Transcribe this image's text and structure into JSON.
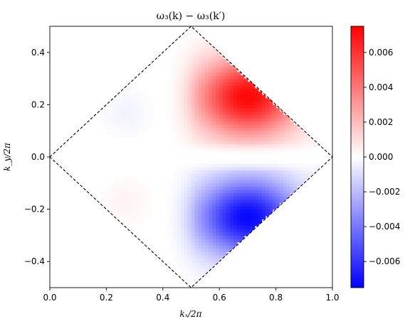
{
  "chart_data": {
    "type": "heatmap",
    "title": "ω₃(k) − ω₃(k′)",
    "xlabel": "kₓ/2π",
    "ylabel": "k_y/2π",
    "xlim": [
      0.0,
      1.0
    ],
    "ylim": [
      -0.5,
      0.5
    ],
    "x_ticks": [
      {
        "value": 0.0,
        "label": "0.0"
      },
      {
        "value": 0.2,
        "label": "0.2"
      },
      {
        "value": 0.4,
        "label": "0.4"
      },
      {
        "value": 0.6,
        "label": "0.6"
      },
      {
        "value": 0.8,
        "label": "0.8"
      },
      {
        "value": 1.0,
        "label": "1.0"
      }
    ],
    "y_ticks": [
      {
        "value": -0.4,
        "label": "−0.4"
      },
      {
        "value": -0.2,
        "label": "−0.2"
      },
      {
        "value": 0.0,
        "label": "0.0"
      },
      {
        "value": 0.2,
        "label": "0.2"
      },
      {
        "value": 0.4,
        "label": "0.4"
      }
    ],
    "colorbar": {
      "colormap": "bwr",
      "range": [
        -0.0075,
        0.0075
      ],
      "min_color": "#0000ff",
      "mid_color": "#ffffff",
      "max_color": "#ff0000",
      "ticks": [
        {
          "value": 0.006,
          "label": "0.006"
        },
        {
          "value": 0.004,
          "label": "0.004"
        },
        {
          "value": 0.002,
          "label": "0.002"
        },
        {
          "value": 0.0,
          "label": "0.000"
        },
        {
          "value": -0.002,
          "label": "−0.002"
        },
        {
          "value": -0.004,
          "label": "−0.004"
        },
        {
          "value": -0.006,
          "label": "−0.006"
        }
      ]
    },
    "boundary": {
      "style": "dashed",
      "vertices": [
        [
          0.0,
          0.0
        ],
        [
          0.5,
          0.5
        ],
        [
          1.0,
          0.0
        ],
        [
          0.5,
          -0.5
        ]
      ]
    },
    "features": [
      {
        "x": 0.7,
        "y": 0.23,
        "value": 0.0072
      },
      {
        "x": 0.7,
        "y": -0.23,
        "value": -0.0072
      },
      {
        "x": 0.27,
        "y": 0.17,
        "value": -0.0003
      },
      {
        "x": 0.27,
        "y": -0.17,
        "value": 0.0003
      }
    ]
  }
}
